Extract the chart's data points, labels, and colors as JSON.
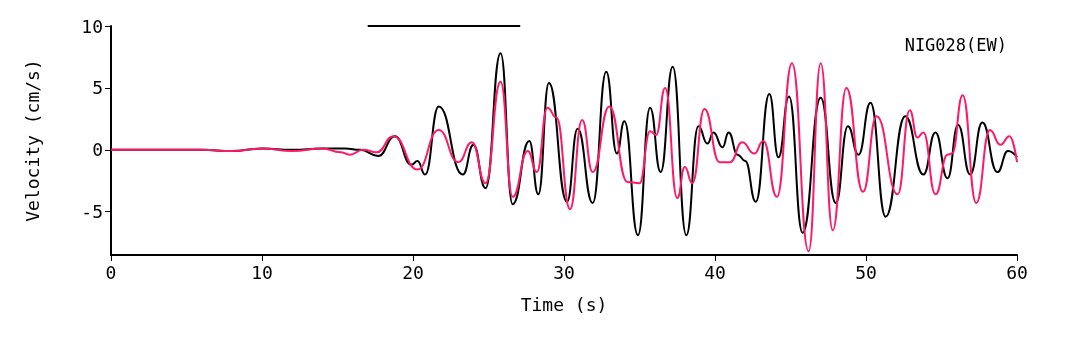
{
  "chart_data": {
    "type": "line",
    "xlabel": "Time (s)",
    "ylabel": "Velocity (cm/s)",
    "annotations": [
      "NIG028(EW)"
    ],
    "xlim": [
      0,
      60
    ],
    "xticks": [
      0,
      10,
      20,
      30,
      40,
      50,
      60
    ],
    "ylim": [
      -8.5,
      10
    ],
    "yticks": [
      -5,
      0,
      5,
      10
    ],
    "grid": false,
    "marker": "none",
    "line_style": "solid",
    "series": [
      {
        "color": "#000000",
        "x": [
          17,
          27.1
        ],
        "values": [
          10,
          10
        ]
      },
      {
        "color": "#000000",
        "x": [
          0,
          6,
          8,
          10,
          12,
          14,
          15.5,
          16.5,
          17.7,
          18.8,
          19.9,
          20.3,
          20.8,
          21.7,
          23.3,
          24.0,
          24.8,
          25.8,
          26.6,
          27.7,
          28.3,
          29.0,
          30.2,
          30.9,
          31.9,
          32.8,
          33.5,
          34.0,
          34.9,
          35.7,
          36.4,
          37.2,
          38.1,
          38.9,
          39.5,
          39.9,
          40.5,
          40.9,
          41.5,
          42.0,
          42.7,
          43.6,
          44.2,
          44.9,
          45.8,
          47.0,
          48.0,
          48.8,
          49.5,
          50.3,
          51.3,
          52.6,
          53.8,
          54.6,
          55.4,
          56.1,
          56.9,
          57.7,
          58.7,
          59.4,
          60
        ],
        "values": [
          0,
          0,
          -0.1,
          0.1,
          0,
          0.1,
          0.1,
          0,
          -0.5,
          1.1,
          -1.2,
          -0.9,
          -2.0,
          3.5,
          -2.0,
          0.4,
          -3.1,
          7.8,
          -4.4,
          0.7,
          -3.6,
          5.4,
          -4.2,
          1.7,
          -4.3,
          6.3,
          -0.3,
          2.3,
          -6.9,
          3.4,
          -1.8,
          6.7,
          -6.9,
          1.9,
          0.5,
          1.4,
          0.2,
          1.4,
          -0.4,
          -0.9,
          -4.2,
          4.5,
          -0.6,
          4.3,
          -6.7,
          4.2,
          -4.3,
          1.9,
          -0.4,
          3.8,
          -5.4,
          2.7,
          -2.0,
          1.4,
          -2.3,
          2.0,
          -2.0,
          2.2,
          -1.8,
          -0.1,
          -0.6
        ]
      },
      {
        "color": "#ff1a66",
        "x": [
          0,
          6,
          8,
          10,
          12,
          14,
          15.2,
          15.8,
          16.7,
          17.6,
          18.7,
          20.3,
          21.7,
          23.0,
          23.9,
          24.8,
          25.8,
          26.6,
          27.6,
          28.2,
          28.9,
          29.5,
          30.4,
          31.2,
          31.9,
          33.0,
          34.2,
          35.0,
          35.7,
          36.1,
          36.7,
          37.5,
          38.0,
          38.5,
          39.3,
          40.3,
          41.0,
          41.8,
          42.6,
          43.2,
          44.1,
          45.1,
          46.2,
          47.0,
          47.8,
          48.7,
          49.8,
          50.7,
          52.1,
          52.9,
          53.4,
          53.8,
          54.6,
          55.4,
          55.7,
          56.4,
          57.3,
          58.2,
          58.9,
          59.5,
          60
        ],
        "values": [
          0,
          0,
          -0.1,
          0.1,
          -0.1,
          0.1,
          -0.2,
          -0.4,
          0,
          -0.2,
          1.1,
          -1.6,
          1.6,
          -1.0,
          0.6,
          -2.7,
          5.5,
          -3.8,
          -0.1,
          -1.8,
          3.4,
          2.6,
          -4.8,
          2.4,
          -1.8,
          3.5,
          -2.6,
          -2.7,
          1.5,
          1.2,
          5.0,
          -3.9,
          -1.4,
          -2.7,
          3.3,
          -1.0,
          -1.0,
          0.6,
          -0.3,
          0.7,
          -3.8,
          7.0,
          -8.2,
          7.0,
          -6.5,
          5.0,
          -3.4,
          2.7,
          -3.6,
          3.2,
          1.0,
          1.4,
          -3.6,
          -0.4,
          -0.3,
          4.4,
          -4.3,
          1.6,
          0.4,
          1.1,
          -1.0
        ]
      }
    ]
  }
}
